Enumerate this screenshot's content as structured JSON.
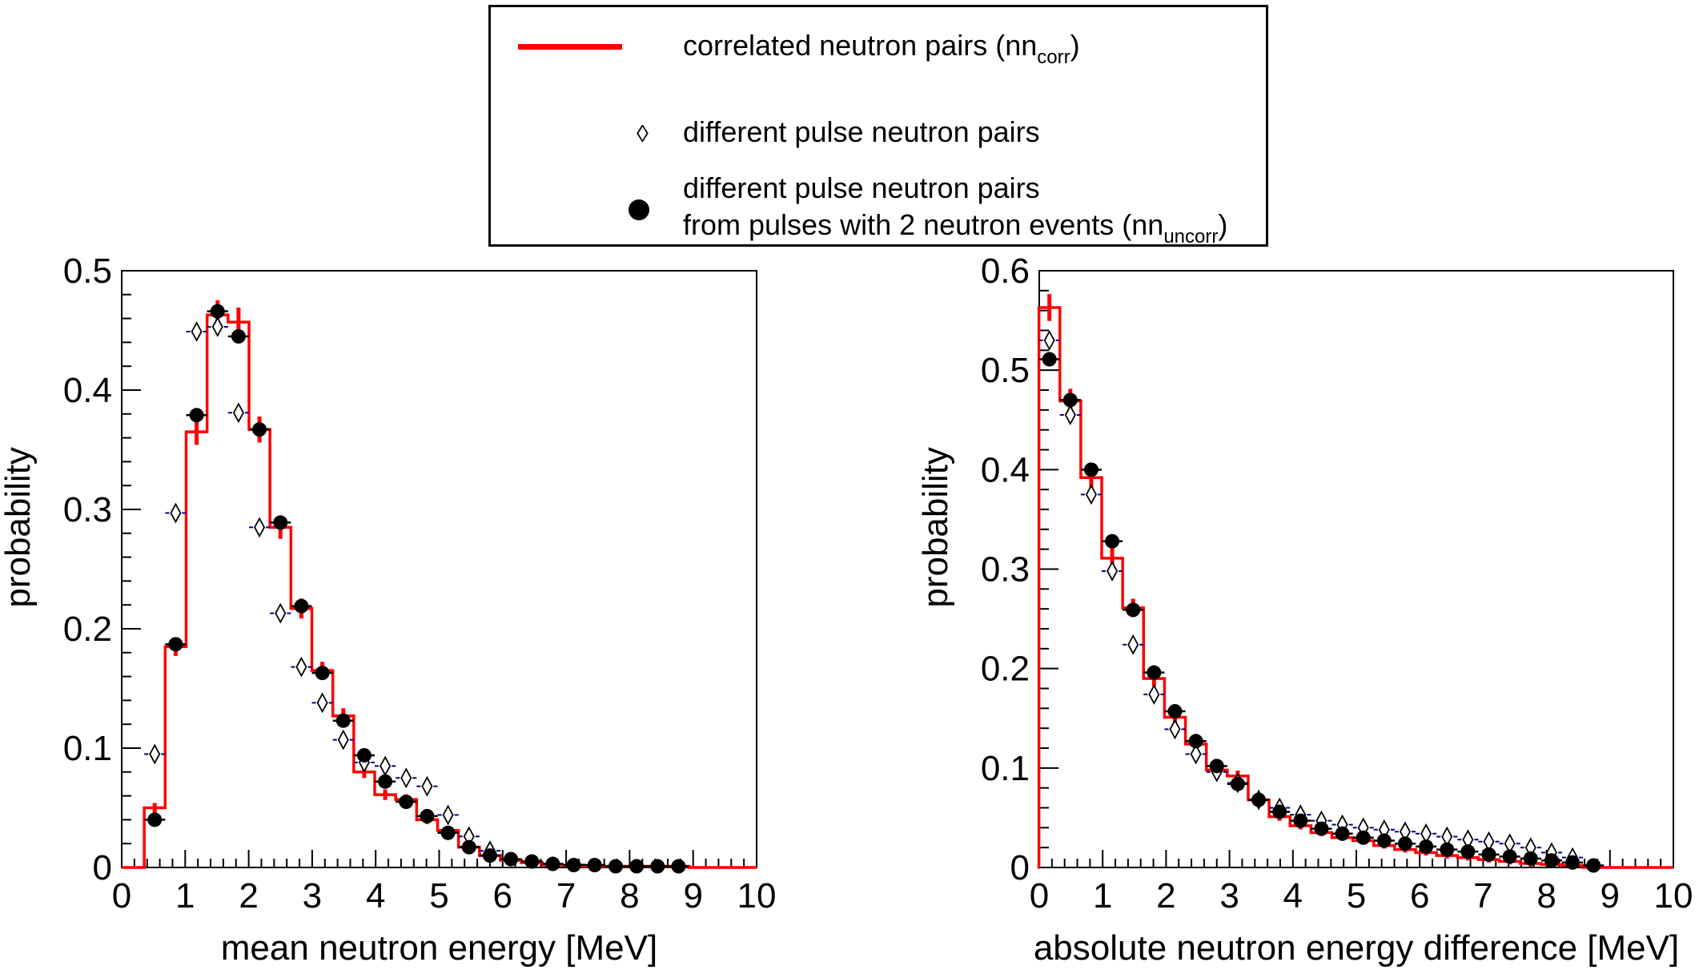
{
  "legend": {
    "correlated_label": "correlated neutron pairs (nn",
    "correlated_sub": "corr",
    "correlated_close": ")",
    "different_pulse_label": "different pulse neutron pairs",
    "two_neutron_line1": "different pulse neutron pairs",
    "two_neutron_line2": "from pulses with 2 neutron events (nn",
    "two_neutron_sub": "uncorr",
    "two_neutron_close": ")"
  },
  "colors": {
    "correlated": "#ff0000",
    "diamond_err": "#00008b",
    "points": "#000000"
  },
  "chart_data": [
    {
      "type": "line",
      "xlabel": "mean neutron energy [MeV]",
      "ylabel": "probability",
      "xlim": [
        0,
        10
      ],
      "ylim": [
        0,
        0.5
      ],
      "xticks": [
        "0",
        "1",
        "2",
        "3",
        "4",
        "5",
        "6",
        "7",
        "8",
        "9",
        "10"
      ],
      "yticks": [
        "0",
        "0.1",
        "0.2",
        "0.3",
        "0.4",
        "0.5"
      ],
      "bin_width": 0.33,
      "series": [
        {
          "name": "correlated neutron pairs (nn_corr)",
          "style": "red-step",
          "x": [
            0.52,
            0.85,
            1.18,
            1.51,
            1.84,
            2.17,
            2.5,
            2.83,
            3.16,
            3.49,
            3.82,
            4.15,
            4.48,
            4.81,
            5.14,
            5.47,
            5.8,
            6.13,
            6.46,
            6.79,
            7.12,
            7.45,
            7.78,
            8.11,
            8.44,
            8.77
          ],
          "y": [
            0.05,
            0.185,
            0.365,
            0.463,
            0.457,
            0.367,
            0.285,
            0.217,
            0.165,
            0.127,
            0.08,
            0.061,
            0.057,
            0.04,
            0.031,
            0.017,
            0.01,
            0.006,
            0.004,
            0.002,
            0.002,
            0.001,
            0.001,
            0.001,
            0.001,
            0.001
          ]
        },
        {
          "name": "different pulse neutron pairs",
          "style": "diamond",
          "x": [
            0.52,
            0.85,
            1.18,
            1.51,
            1.84,
            2.17,
            2.5,
            2.83,
            3.16,
            3.49,
            3.82,
            4.15,
            4.48,
            4.81,
            5.14,
            5.47,
            5.8
          ],
          "y": [
            0.095,
            0.297,
            0.449,
            0.453,
            0.381,
            0.285,
            0.213,
            0.168,
            0.138,
            0.107,
            0.088,
            0.085,
            0.075,
            0.068,
            0.044,
            0.026,
            0.014
          ]
        },
        {
          "name": "different pulse neutron pairs from pulses with 2 neutron events (nn_uncorr)",
          "style": "dot",
          "x": [
            0.52,
            0.85,
            1.18,
            1.51,
            1.84,
            2.17,
            2.5,
            2.83,
            3.16,
            3.49,
            3.82,
            4.15,
            4.48,
            4.81,
            5.14,
            5.47,
            5.8,
            6.13,
            6.46,
            6.79,
            7.12,
            7.45,
            7.78,
            8.11,
            8.44,
            8.77
          ],
          "y": [
            0.04,
            0.187,
            0.379,
            0.466,
            0.445,
            0.367,
            0.289,
            0.219,
            0.163,
            0.123,
            0.094,
            0.072,
            0.055,
            0.043,
            0.029,
            0.017,
            0.01,
            0.007,
            0.005,
            0.003,
            0.002,
            0.002,
            0.001,
            0.001,
            0.001,
            0.001
          ]
        }
      ]
    },
    {
      "type": "line",
      "xlabel": "absolute neutron energy difference [MeV]",
      "ylabel": "probability",
      "xlim": [
        0,
        10
      ],
      "ylim": [
        0,
        0.6
      ],
      "xticks": [
        "0",
        "1",
        "2",
        "3",
        "4",
        "5",
        "6",
        "7",
        "8",
        "9",
        "10"
      ],
      "yticks": [
        "0",
        "0.1",
        "0.2",
        "0.3",
        "0.4",
        "0.5",
        "0.6"
      ],
      "bin_width": 0.33,
      "series": [
        {
          "name": "correlated neutron pairs (nn_corr)",
          "style": "red-step",
          "x": [
            0.16,
            0.49,
            0.82,
            1.15,
            1.48,
            1.81,
            2.14,
            2.47,
            2.8,
            3.13,
            3.46,
            3.79,
            4.12,
            4.45,
            4.78,
            5.11,
            5.44,
            5.77,
            6.1,
            6.43,
            6.76,
            7.09,
            7.42,
            7.75,
            8.08,
            8.41
          ],
          "y": [
            0.563,
            0.469,
            0.392,
            0.311,
            0.261,
            0.19,
            0.151,
            0.124,
            0.098,
            0.092,
            0.068,
            0.051,
            0.042,
            0.035,
            0.03,
            0.027,
            0.022,
            0.018,
            0.015,
            0.012,
            0.01,
            0.008,
            0.006,
            0.004,
            0.003,
            0.002
          ]
        },
        {
          "name": "different pulse neutron pairs",
          "style": "diamond",
          "x": [
            0.16,
            0.49,
            0.82,
            1.15,
            1.48,
            1.81,
            2.14,
            2.47,
            2.8,
            3.13,
            3.46,
            3.79,
            4.12,
            4.45,
            4.78,
            5.11,
            5.44,
            5.77,
            6.1,
            6.43,
            6.76,
            7.09,
            7.42,
            7.75,
            8.08,
            8.41
          ],
          "y": [
            0.53,
            0.455,
            0.375,
            0.298,
            0.224,
            0.174,
            0.139,
            0.114,
            0.096,
            0.085,
            0.068,
            0.06,
            0.053,
            0.047,
            0.043,
            0.04,
            0.038,
            0.036,
            0.034,
            0.031,
            0.028,
            0.026,
            0.024,
            0.02,
            0.015,
            0.01
          ]
        },
        {
          "name": "different pulse neutron pairs from pulses with 2 neutron events (nn_uncorr)",
          "style": "dot",
          "x": [
            0.16,
            0.49,
            0.82,
            1.15,
            1.48,
            1.81,
            2.14,
            2.47,
            2.8,
            3.13,
            3.46,
            3.79,
            4.12,
            4.45,
            4.78,
            5.11,
            5.44,
            5.77,
            6.1,
            6.43,
            6.76,
            7.09,
            7.42,
            7.75,
            8.08,
            8.41,
            8.74
          ],
          "y": [
            0.511,
            0.47,
            0.4,
            0.328,
            0.259,
            0.196,
            0.157,
            0.127,
            0.102,
            0.084,
            0.068,
            0.056,
            0.047,
            0.039,
            0.034,
            0.03,
            0.027,
            0.024,
            0.021,
            0.018,
            0.016,
            0.013,
            0.011,
            0.009,
            0.007,
            0.005,
            0.002
          ]
        }
      ]
    }
  ]
}
